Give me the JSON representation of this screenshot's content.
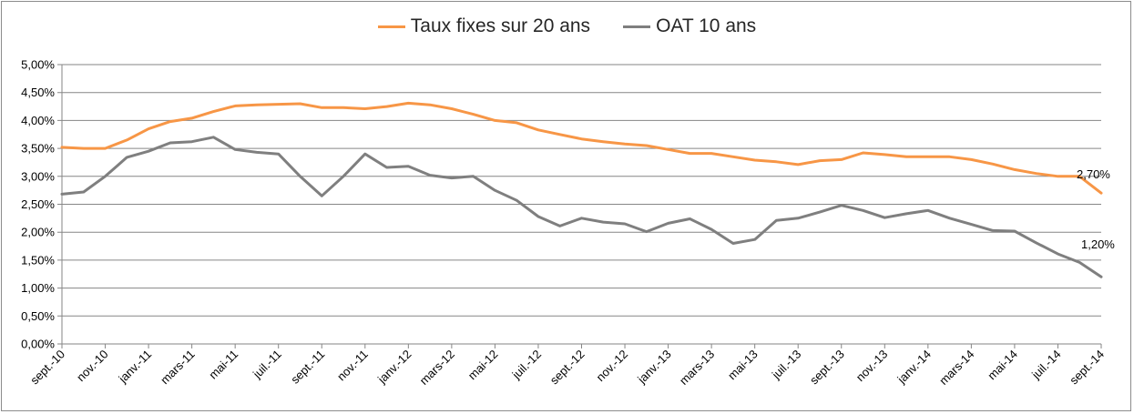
{
  "chart_data": {
    "type": "line",
    "title": "",
    "xlabel": "",
    "ylabel": "",
    "ylim": [
      0,
      5
    ],
    "y_ticks": [
      "0,00%",
      "0,50%",
      "1,00%",
      "1,50%",
      "2,00%",
      "2,50%",
      "3,00%",
      "3,50%",
      "4,00%",
      "4,50%",
      "5,00%"
    ],
    "grid": true,
    "legend_position": "top",
    "x_tick_labels": [
      "sept.-10",
      "nov.-10",
      "janv.-11",
      "mars-11",
      "mai-11",
      "juil.-11",
      "sept.-11",
      "nov.-11",
      "janv.-12",
      "mars-12",
      "mai-12",
      "juil.-12",
      "sept.-12",
      "nov.-12",
      "janv.-13",
      "mars-13",
      "mai-13",
      "juil.-13",
      "sept.-13",
      "nov.-13",
      "janv.-14",
      "mars-14",
      "mai-14",
      "juil.-14",
      "sept.-14"
    ],
    "x": [
      "sept.-10",
      "oct.-10",
      "nov.-10",
      "déc.-10",
      "janv.-11",
      "févr.-11",
      "mars-11",
      "avr.-11",
      "mai-11",
      "juin-11",
      "juil.-11",
      "août-11",
      "sept.-11",
      "oct.-11",
      "nov.-11",
      "déc.-11",
      "janv.-12",
      "févr.-12",
      "mars-12",
      "avr.-12",
      "mai-12",
      "juin-12",
      "juil.-12",
      "août-12",
      "sept.-12",
      "oct.-12",
      "nov.-12",
      "déc.-12",
      "janv.-13",
      "févr.-13",
      "mars-13",
      "avr.-13",
      "mai-13",
      "juin-13",
      "juil.-13",
      "août-13",
      "sept.-13",
      "oct.-13",
      "nov.-13",
      "déc.-13",
      "janv.-14",
      "févr.-14",
      "mars-14",
      "avr.-14",
      "mai-14",
      "juin-14",
      "juil.-14",
      "août-14",
      "sept.-14"
    ],
    "series": [
      {
        "name": "Taux fixes sur 20 ans",
        "color": "#f79646",
        "values": [
          3.52,
          3.5,
          3.5,
          3.65,
          3.85,
          3.98,
          4.04,
          4.16,
          4.26,
          4.28,
          4.29,
          4.3,
          4.23,
          4.23,
          4.21,
          4.25,
          4.31,
          4.28,
          4.21,
          4.11,
          4.0,
          3.96,
          3.83,
          3.75,
          3.67,
          3.62,
          3.58,
          3.55,
          3.48,
          3.41,
          3.41,
          3.35,
          3.29,
          3.26,
          3.21,
          3.28,
          3.3,
          3.42,
          3.39,
          3.35,
          3.35,
          3.35,
          3.3,
          3.22,
          3.12,
          3.05,
          3.0,
          3.0,
          2.7
        ],
        "end_label": "2,70%"
      },
      {
        "name": "OAT 10 ans",
        "color": "#7f7f7f",
        "values": [
          2.68,
          2.72,
          3.0,
          3.34,
          3.45,
          3.6,
          3.62,
          3.7,
          3.48,
          3.43,
          3.4,
          3.0,
          2.65,
          3.0,
          3.4,
          3.16,
          3.18,
          3.02,
          2.97,
          3.0,
          2.75,
          2.57,
          2.28,
          2.11,
          2.25,
          2.18,
          2.15,
          2.01,
          2.16,
          2.24,
          2.05,
          1.8,
          1.87,
          2.21,
          2.25,
          2.36,
          2.48,
          2.39,
          2.26,
          2.33,
          2.39,
          2.25,
          2.14,
          2.03,
          2.02,
          1.81,
          1.61,
          1.46,
          1.2
        ],
        "end_label": "1,20%"
      }
    ]
  },
  "legend": {
    "items": [
      {
        "label": "Taux fixes sur 20 ans",
        "color": "#f79646"
      },
      {
        "label": "OAT 10 ans",
        "color": "#7f7f7f"
      }
    ]
  }
}
